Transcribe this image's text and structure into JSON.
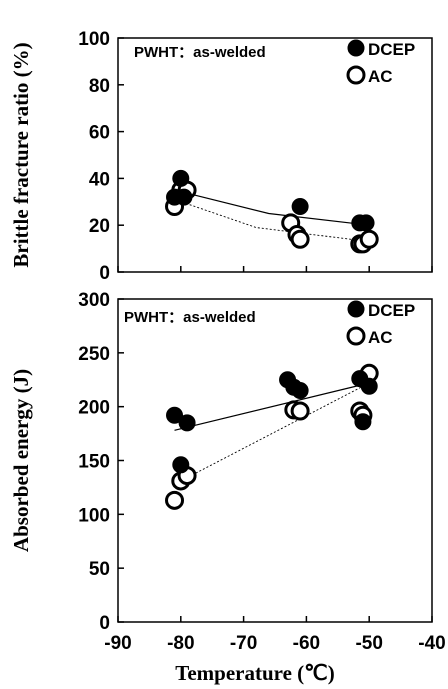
{
  "chart_data": [
    {
      "type": "scatter",
      "title": "",
      "annotation": "PWHT：as-welded",
      "xlabel": "",
      "ylabel": "Brittle fracture ratio (%)",
      "xlim": [
        -90,
        -40
      ],
      "ylim": [
        0,
        100
      ],
      "yticks": [
        "0",
        "20",
        "40",
        "60",
        "80",
        "100"
      ],
      "grid": false,
      "legend_position": "top-right",
      "series": [
        {
          "name": "DCEP",
          "marker": "filled-circle",
          "color": "#000000",
          "x": [
            -81,
            -80,
            -79.5,
            -61,
            -51.5,
            -50.5
          ],
          "y": [
            32,
            40,
            32,
            28,
            21,
            21
          ],
          "trend": [
            [
              -81,
              35
            ],
            [
              -66,
              25
            ],
            [
              -50,
              20
            ]
          ]
        },
        {
          "name": "AC",
          "marker": "open-circle",
          "color": "#000000",
          "x": [
            -81,
            -80,
            -79,
            -62.5,
            -61.5,
            -61,
            -51.5,
            -51,
            -50
          ],
          "y": [
            28,
            35,
            35,
            21,
            16,
            14,
            12,
            12,
            14
          ],
          "trend": [
            [
              -81,
              31
            ],
            [
              -68,
              19
            ],
            [
              -50,
              13
            ]
          ]
        }
      ]
    },
    {
      "type": "scatter",
      "title": "",
      "annotation": "PWHT：as-welded",
      "xlabel": "Temperature (℃)",
      "ylabel": "Absorbed energy (J)",
      "xlim": [
        -90,
        -40
      ],
      "ylim": [
        0,
        300
      ],
      "xticks": [
        "-90",
        "-80",
        "-70",
        "-60",
        "-50",
        "-40"
      ],
      "yticks": [
        "0",
        "50",
        "100",
        "150",
        "200",
        "250",
        "300"
      ],
      "grid": false,
      "legend_position": "top-right",
      "series": [
        {
          "name": "DCEP",
          "marker": "filled-circle",
          "color": "#000000",
          "x": [
            -81,
            -80,
            -79,
            -63,
            -62,
            -61,
            -51.5,
            -51,
            -50
          ],
          "y": [
            192,
            146,
            185,
            225,
            218,
            215,
            226,
            186,
            219
          ],
          "trend": [
            [
              -81,
              178
            ],
            [
              -50,
              222
            ]
          ]
        },
        {
          "name": "AC",
          "marker": "open-circle",
          "color": "#000000",
          "x": [
            -81,
            -80,
            -79,
            -62,
            -61,
            -51.5,
            -51,
            -50
          ],
          "y": [
            113,
            131,
            136,
            197,
            196,
            196,
            192,
            231
          ],
          "trend": [
            [
              -81,
              128
            ],
            [
              -50,
              222
            ]
          ]
        }
      ]
    }
  ]
}
